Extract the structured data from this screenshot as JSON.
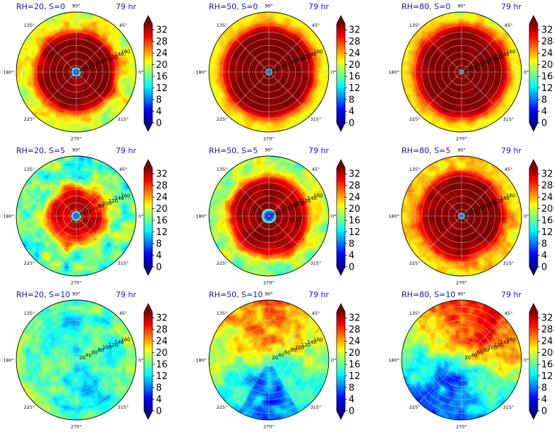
{
  "figure": {
    "time_label": "79 hr",
    "colormap": "jet",
    "angle_labels": [
      "0°",
      "45°",
      "90°",
      "135°",
      "180°",
      "225°",
      "270°",
      "315°"
    ],
    "radial_labels": [
      "20",
      "40",
      "60",
      "80",
      "100",
      "120",
      "140",
      "160"
    ]
  },
  "chart_data": [
    {
      "type": "heatmap",
      "projection": "polar",
      "title": "RH=20, S=0",
      "time": "79 hr",
      "rh": 20,
      "s": 0,
      "rlim": [
        0,
        180
      ],
      "clim": [
        0,
        34
      ],
      "colorbar_ticks": [
        0,
        4,
        8,
        12,
        16,
        20,
        24,
        28,
        32
      ],
      "field": {
        "eye_radius": 14,
        "core_value": 34,
        "outer_value": 20,
        "transition_radius": 125,
        "transition_width": 35,
        "eye_noise": 0.25,
        "variability": 5,
        "azimuthal_pattern": "uniform"
      }
    },
    {
      "type": "heatmap",
      "projection": "polar",
      "title": "RH=50, S=0",
      "time": "79 hr",
      "rh": 50,
      "s": 0,
      "rlim": [
        0,
        180
      ],
      "clim": [
        0,
        34
      ],
      "colorbar_ticks": [
        0,
        4,
        8,
        12,
        16,
        20,
        24,
        28,
        32
      ],
      "field": {
        "eye_radius": 10,
        "core_value": 34,
        "outer_value": 21,
        "transition_radius": 140,
        "transition_width": 35,
        "eye_noise": 0.25,
        "variability": 3,
        "azimuthal_pattern": "uniform"
      }
    },
    {
      "type": "heatmap",
      "projection": "polar",
      "title": "RH=80, S=0",
      "time": "79 hr",
      "rh": 80,
      "s": 0,
      "rlim": [
        0,
        180
      ],
      "clim": [
        0,
        34
      ],
      "colorbar_ticks": [
        0,
        4,
        8,
        12,
        16,
        20,
        24,
        28,
        32
      ],
      "field": {
        "eye_radius": 7,
        "core_value": 34,
        "outer_value": 21,
        "transition_radius": 142,
        "transition_width": 38,
        "eye_noise": 0.15,
        "variability": 4,
        "azimuthal_pattern": "uniform"
      }
    },
    {
      "type": "heatmap",
      "projection": "polar",
      "title": "RH=20, S=5",
      "time": "79 hr",
      "rh": 20,
      "s": 5,
      "rlim": [
        0,
        180
      ],
      "clim": [
        0,
        34
      ],
      "colorbar_ticks": [
        0,
        4,
        8,
        12,
        16,
        20,
        24,
        28,
        32
      ],
      "field": {
        "eye_radius": 15,
        "core_value": 31,
        "outer_value": 16,
        "transition_radius": 90,
        "transition_width": 40,
        "eye_noise": 0.3,
        "variability": 8,
        "azimuthal_pattern": "uniform"
      }
    },
    {
      "type": "heatmap",
      "projection": "polar",
      "title": "RH=50, S=5",
      "time": "79 hr",
      "rh": 50,
      "s": 5,
      "rlim": [
        0,
        180
      ],
      "clim": [
        0,
        34
      ],
      "colorbar_ticks": [
        0,
        4,
        8,
        12,
        16,
        20,
        24,
        28,
        32
      ],
      "field": {
        "eye_radius": 22,
        "core_value": 33,
        "outer_value": 18,
        "transition_radius": 125,
        "transition_width": 40,
        "eye_noise": 0.3,
        "variability": 6,
        "azimuthal_pattern": "uniform"
      }
    },
    {
      "type": "heatmap",
      "projection": "polar",
      "title": "RH=80, S=5",
      "time": "79 hr",
      "rh": 80,
      "s": 5,
      "rlim": [
        0,
        180
      ],
      "clim": [
        0,
        34
      ],
      "colorbar_ticks": [
        0,
        4,
        8,
        12,
        16,
        20,
        24,
        28,
        32
      ],
      "field": {
        "eye_radius": 10,
        "core_value": 34,
        "outer_value": 22,
        "transition_radius": 130,
        "transition_width": 40,
        "eye_noise": 0.2,
        "variability": 5,
        "azimuthal_pattern": "uniform"
      }
    },
    {
      "type": "heatmap",
      "projection": "polar",
      "title": "RH=20, S=10",
      "time": "79 hr",
      "rh": 20,
      "s": 10,
      "rlim": [
        0,
        180
      ],
      "clim": [
        0,
        34
      ],
      "colorbar_ticks": [
        0,
        4,
        8,
        12,
        16,
        20,
        24,
        28,
        32
      ],
      "field": {
        "eye_radius": 0,
        "core_value": 13,
        "outer_value": 14,
        "transition_radius": 90,
        "transition_width": 60,
        "eye_noise": 0,
        "variability": 4,
        "azimuthal_pattern": "weak_cool"
      }
    },
    {
      "type": "heatmap",
      "projection": "polar",
      "title": "RH=50, S=10",
      "time": "79 hr",
      "rh": 50,
      "s": 10,
      "rlim": [
        0,
        180
      ],
      "clim": [
        0,
        34
      ],
      "colorbar_ticks": [
        0,
        4,
        8,
        12,
        16,
        20,
        24,
        28,
        32
      ],
      "field": {
        "eye_radius": 0,
        "core_value": 18,
        "outer_value": 18,
        "transition_radius": 90,
        "transition_width": 60,
        "eye_noise": 0,
        "variability": 5,
        "azimuthal_pattern": "north_warm_south_cool"
      }
    },
    {
      "type": "heatmap",
      "projection": "polar",
      "title": "RH=80, S=10",
      "time": "79 hr",
      "rh": 80,
      "s": 10,
      "rlim": [
        0,
        180
      ],
      "clim": [
        0,
        34
      ],
      "colorbar_ticks": [
        0,
        4,
        8,
        12,
        16,
        20,
        24,
        28,
        32
      ],
      "field": {
        "eye_radius": 0,
        "core_value": 18,
        "outer_value": 20,
        "transition_radius": 90,
        "transition_width": 60,
        "eye_noise": 0,
        "variability": 5,
        "azimuthal_pattern": "northeast_warm_southwest_cool"
      }
    }
  ]
}
